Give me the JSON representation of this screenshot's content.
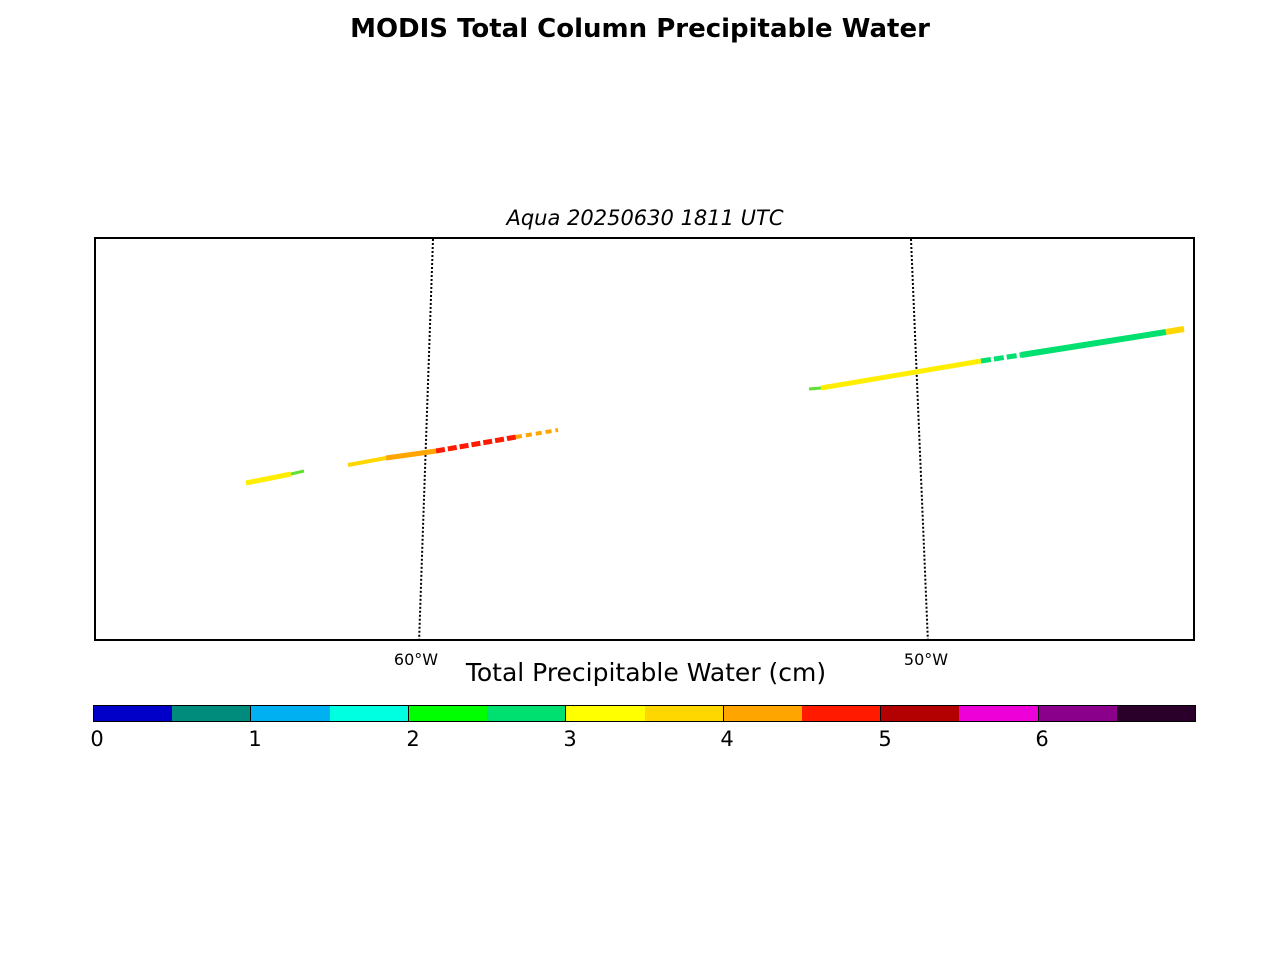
{
  "title": "MODIS Total Column Precipitable Water",
  "subtitle": "Aqua 20250630 1811 UTC",
  "map": {
    "meridian_labels": [
      "60°W",
      "50°W"
    ],
    "swath_colors": {
      "yellow": "#ffee00",
      "green": "#00e070",
      "orange": "#ffa500",
      "red": "#ff1a00",
      "lime": "#60e030"
    }
  },
  "colorbar": {
    "label": "Total Precipitable Water (cm)",
    "tick_labels": [
      "0",
      "1",
      "2",
      "3",
      "4",
      "5",
      "6"
    ],
    "colors": [
      "#0000c8",
      "#008c7c",
      "#00b0f0",
      "#00ffe0",
      "#00ff00",
      "#00e070",
      "#ffff00",
      "#ffd700",
      "#ffa500",
      "#ff1a00",
      "#b30000",
      "#ee00d8",
      "#8b008b",
      "#2a002a"
    ]
  }
}
